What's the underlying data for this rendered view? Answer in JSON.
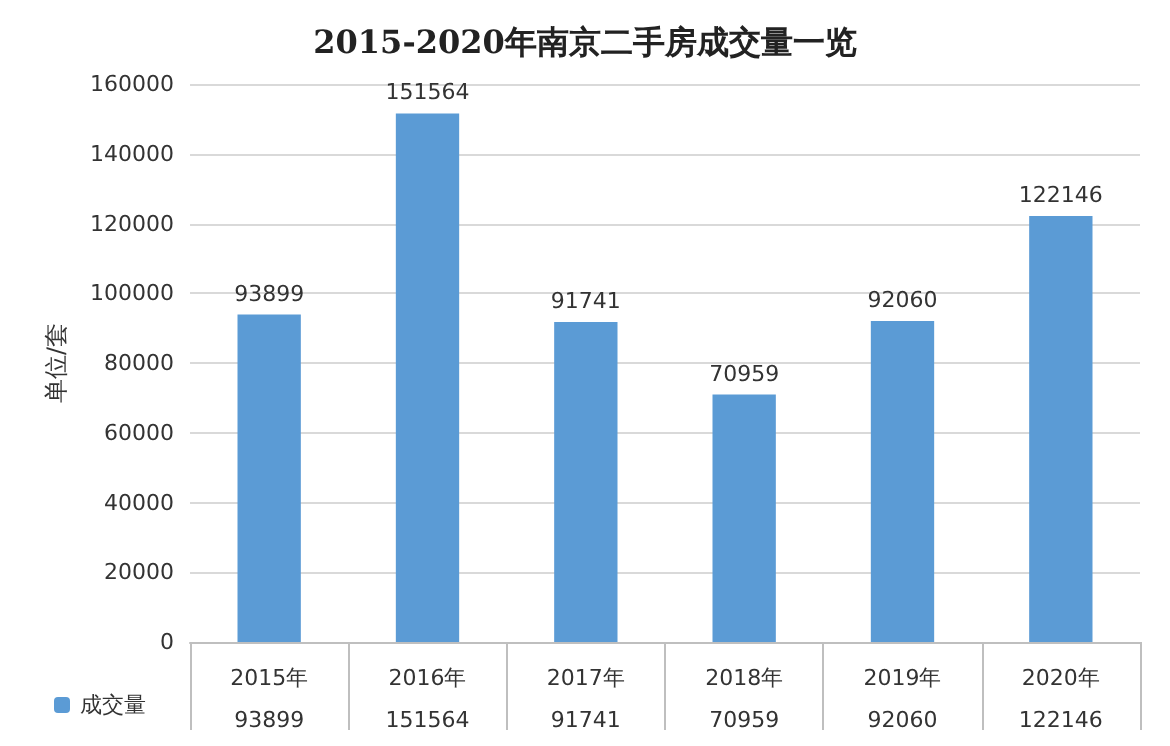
{
  "chart_data": {
    "type": "bar",
    "title": "2015-2020年南京二手房成交量一览",
    "ylabel": "单位/套",
    "categories": [
      "2015年",
      "2016年",
      "2017年",
      "2018年",
      "2019年",
      "2020年"
    ],
    "series": [
      {
        "name": "成交量",
        "color": "#5b9bd5",
        "values": [
          93899,
          151564,
          91741,
          70959,
          92060,
          122146
        ],
        "value_labels": [
          "93899",
          "151564",
          "91741",
          "70959",
          "92060",
          "122146"
        ]
      }
    ],
    "ylim": [
      0,
      160000
    ],
    "yticks": [
      0,
      20000,
      40000,
      60000,
      80000,
      100000,
      120000,
      140000,
      160000
    ],
    "annotations": [
      "93899",
      "151564",
      "91741",
      "70959",
      "92060",
      "122146"
    ],
    "grid": "y",
    "legend": "bottom left"
  }
}
